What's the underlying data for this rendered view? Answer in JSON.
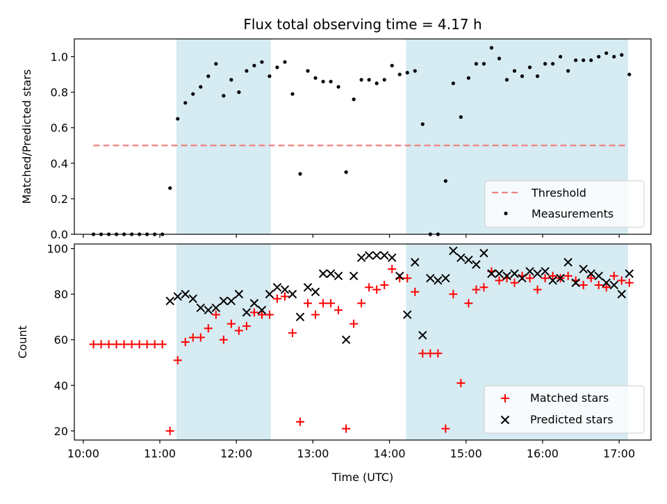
{
  "title": "Flux total observing time = 4.17 h",
  "colors": {
    "shade": "#add8e6",
    "threshold": "#f08080",
    "measurement": "#000000",
    "matched": "#ff0000",
    "predicted": "#000000"
  },
  "chart_data": [
    {
      "type": "scatter",
      "ylabel": "Matched/Predicted stars",
      "xlabel": "",
      "xlim": [
        "09:53",
        "17:25"
      ],
      "ylim": [
        0,
        1.1
      ],
      "yticks": [
        0.0,
        0.2,
        0.4,
        0.6,
        0.8,
        1.0
      ],
      "ytick_labels": [
        "0.0",
        "0.2",
        "0.4",
        "0.6",
        "0.8",
        "1.0"
      ],
      "shaded_spans": [
        [
          "11:13",
          "12:27"
        ],
        [
          "14:13",
          "17:07"
        ]
      ],
      "legend_position": "lower-right",
      "threshold": {
        "name": "Threshold",
        "y": 0.5,
        "x": [
          "10:08",
          "17:07"
        ]
      },
      "series": [
        {
          "name": "Measurements",
          "x": [
            "10:08",
            "10:14",
            "10:20",
            "10:26",
            "10:32",
            "10:38",
            "10:44",
            "10:50",
            "10:56",
            "11:02",
            "11:08",
            "11:14",
            "11:20",
            "11:26",
            "11:32",
            "11:38",
            "11:44",
            "11:50",
            "11:56",
            "12:02",
            "12:08",
            "12:14",
            "12:20",
            "12:26",
            "12:32",
            "12:38",
            "12:44",
            "12:50",
            "12:56",
            "13:02",
            "13:08",
            "13:14",
            "13:20",
            "13:26",
            "13:32",
            "13:38",
            "13:44",
            "13:50",
            "13:56",
            "14:02",
            "14:08",
            "14:14",
            "14:20",
            "14:26",
            "14:32",
            "14:38",
            "14:44",
            "14:50",
            "14:56",
            "15:02",
            "15:08",
            "15:14",
            "15:20",
            "15:26",
            "15:32",
            "15:38",
            "15:44",
            "15:50",
            "15:56",
            "16:02",
            "16:08",
            "16:14",
            "16:20",
            "16:26",
            "16:32",
            "16:38",
            "16:44",
            "16:50",
            "16:56",
            "17:02",
            "17:08"
          ],
          "y": [
            0.0,
            0.0,
            0.0,
            0.0,
            0.0,
            0.0,
            0.0,
            0.0,
            0.0,
            0.0,
            0.26,
            0.65,
            0.74,
            0.79,
            0.83,
            0.89,
            0.96,
            0.78,
            0.87,
            0.8,
            0.92,
            0.95,
            0.97,
            0.89,
            0.94,
            0.97,
            0.79,
            0.34,
            0.92,
            0.88,
            0.86,
            0.86,
            0.83,
            0.35,
            0.76,
            0.87,
            0.87,
            0.85,
            0.87,
            0.95,
            0.9,
            0.91,
            0.92,
            0.62,
            0.0,
            0.0,
            0.3,
            0.85,
            0.66,
            0.88,
            0.96,
            0.96,
            1.05,
            0.99,
            0.87,
            0.92,
            0.89,
            0.94,
            0.89,
            0.96,
            0.96,
            1.0,
            0.92,
            0.98,
            0.98,
            0.98,
            1.0,
            1.02,
            1.0,
            1.01,
            0.9
          ]
        }
      ]
    },
    {
      "type": "scatter",
      "ylabel": "Count",
      "xlabel": "Time (UTC)",
      "xlim": [
        "09:53",
        "17:25"
      ],
      "ylim": [
        16,
        102
      ],
      "yticks": [
        20,
        40,
        60,
        80,
        100
      ],
      "ytick_labels": [
        "20",
        "40",
        "60",
        "80",
        "100"
      ],
      "xticks": [
        "10:00",
        "11:00",
        "12:00",
        "13:00",
        "14:00",
        "15:00",
        "16:00",
        "17:00"
      ],
      "xtick_labels": [
        "10:00",
        "11:00",
        "12:00",
        "13:00",
        "14:00",
        "15:00",
        "16:00",
        "17:00"
      ],
      "shaded_spans": [
        [
          "11:13",
          "12:27"
        ],
        [
          "14:13",
          "17:07"
        ]
      ],
      "legend_position": "lower-right",
      "series": [
        {
          "name": "Matched stars",
          "marker": "plus",
          "x": [
            "10:08",
            "10:14",
            "10:20",
            "10:26",
            "10:32",
            "10:38",
            "10:44",
            "10:50",
            "10:56",
            "11:02",
            "11:08",
            "11:14",
            "11:20",
            "11:26",
            "11:32",
            "11:38",
            "11:44",
            "11:50",
            "11:56",
            "12:02",
            "12:08",
            "12:14",
            "12:20",
            "12:26",
            "12:32",
            "12:38",
            "12:44",
            "12:50",
            "12:56",
            "13:02",
            "13:08",
            "13:14",
            "13:20",
            "13:26",
            "13:32",
            "13:38",
            "13:44",
            "13:50",
            "13:56",
            "14:02",
            "14:08",
            "14:14",
            "14:20",
            "14:26",
            "14:32",
            "14:38",
            "14:44",
            "14:50",
            "14:56",
            "15:02",
            "15:08",
            "15:14",
            "15:20",
            "15:26",
            "15:32",
            "15:38",
            "15:44",
            "15:50",
            "15:56",
            "16:02",
            "16:08",
            "16:14",
            "16:20",
            "16:26",
            "16:32",
            "16:38",
            "16:44",
            "16:50",
            "16:56",
            "17:02",
            "17:08"
          ],
          "y": [
            58,
            58,
            58,
            58,
            58,
            58,
            58,
            58,
            58,
            58,
            20,
            51,
            59,
            61,
            61,
            65,
            71,
            60,
            67,
            64,
            66,
            72,
            71,
            71,
            78,
            79,
            63,
            24,
            76,
            71,
            76,
            76,
            73,
            21,
            67,
            76,
            83,
            82,
            84,
            91,
            87,
            87,
            81,
            54,
            54,
            54,
            21,
            80,
            41,
            76,
            82,
            83,
            90,
            86,
            87,
            85,
            88,
            87,
            82,
            87,
            88,
            87,
            88,
            86,
            84,
            87,
            84,
            83,
            88,
            86,
            85
          ]
        },
        {
          "name": "Predicted stars",
          "marker": "x",
          "x": [
            "11:08",
            "11:14",
            "11:20",
            "11:26",
            "11:32",
            "11:38",
            "11:44",
            "11:50",
            "11:56",
            "12:02",
            "12:08",
            "12:14",
            "12:20",
            "12:26",
            "12:32",
            "12:38",
            "12:44",
            "12:50",
            "12:56",
            "13:02",
            "13:08",
            "13:14",
            "13:20",
            "13:26",
            "13:32",
            "13:38",
            "13:44",
            "13:50",
            "13:56",
            "14:02",
            "14:08",
            "14:14",
            "14:20",
            "14:26",
            "14:32",
            "14:38",
            "14:44",
            "14:50",
            "14:56",
            "15:02",
            "15:08",
            "15:14",
            "15:20",
            "15:26",
            "15:32",
            "15:38",
            "15:44",
            "15:50",
            "15:56",
            "16:02",
            "16:08",
            "16:14",
            "16:20",
            "16:26",
            "16:32",
            "16:38",
            "16:44",
            "16:50",
            "16:56",
            "17:02",
            "17:08"
          ],
          "y": [
            77,
            79,
            80,
            78,
            74,
            73,
            74,
            77,
            77,
            80,
            72,
            76,
            73,
            80,
            83,
            82,
            80,
            70,
            83,
            81,
            89,
            89,
            88,
            60,
            88,
            96,
            97,
            97,
            97,
            96,
            88,
            71,
            94,
            62,
            87,
            86,
            87,
            99,
            96,
            95,
            93,
            98,
            89,
            89,
            88,
            89,
            87,
            90,
            89,
            90,
            86,
            87,
            94,
            85,
            91,
            89,
            88,
            85,
            84,
            80,
            89
          ]
        }
      ]
    }
  ]
}
